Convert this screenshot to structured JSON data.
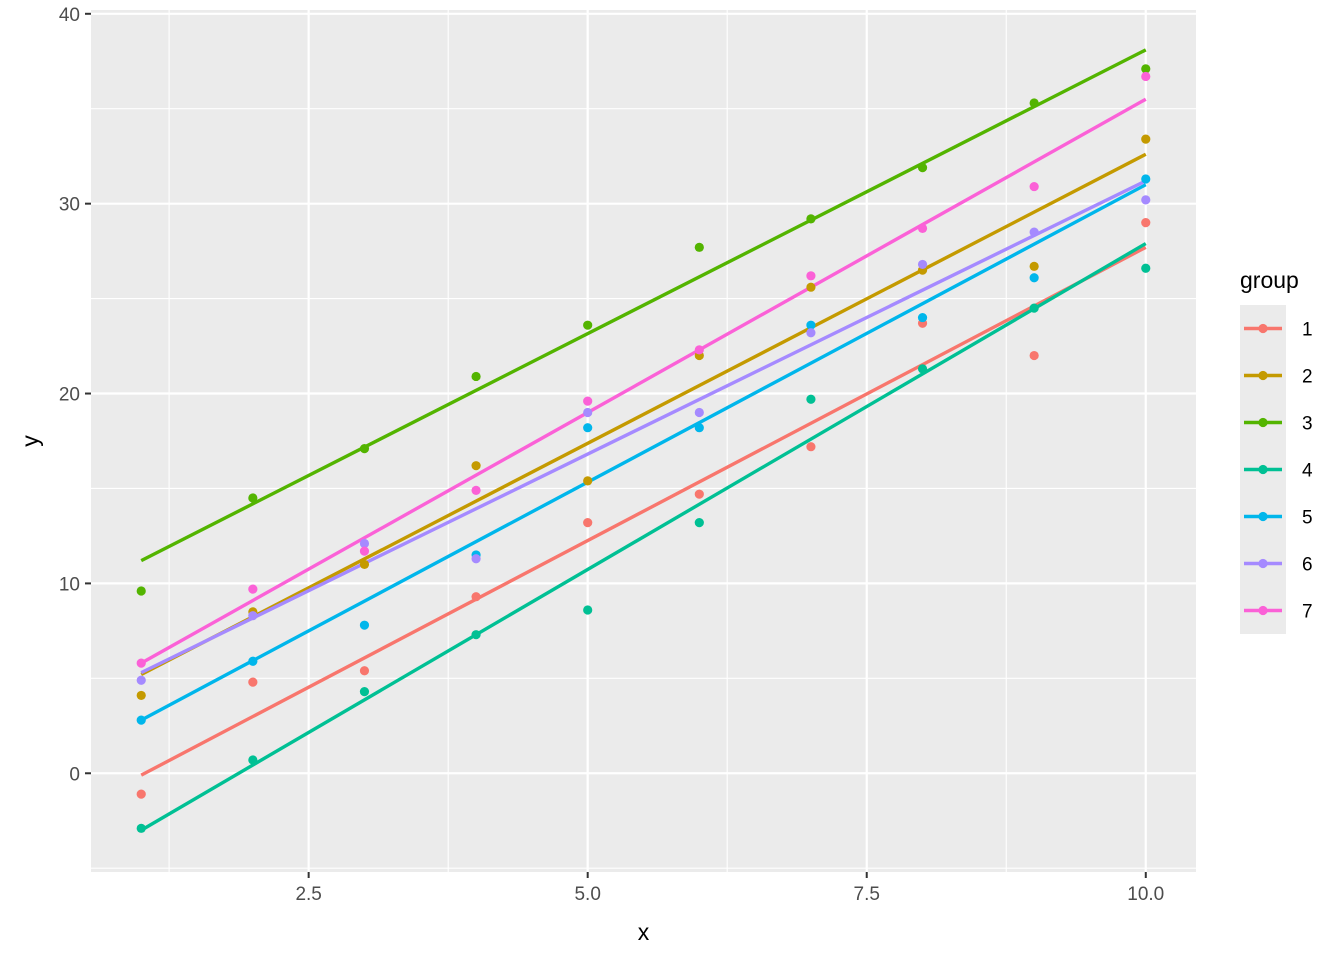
{
  "chart_data": {
    "type": "scatter",
    "title": "",
    "xlabel": "x",
    "ylabel": "y",
    "xlim": [
      0.55,
      10.45
    ],
    "ylim": [
      -5.2,
      40.2
    ],
    "x_ticks": [
      2.5,
      5.0,
      7.5,
      10.0
    ],
    "x_tick_labels": [
      "2.5",
      "5.0",
      "7.5",
      "10.0"
    ],
    "y_ticks": [
      0,
      10,
      20,
      30,
      40
    ],
    "y_tick_labels": [
      "0",
      "10",
      "20",
      "30",
      "40"
    ],
    "grid": true,
    "background": "#ebebeb",
    "legend": {
      "title": "group",
      "position": "right"
    },
    "x": [
      1,
      2,
      3,
      4,
      5,
      6,
      7,
      8,
      9,
      10
    ],
    "series": [
      {
        "name": "1",
        "color": "#F8766D",
        "values": [
          -1.1,
          4.8,
          5.4,
          9.3,
          13.2,
          14.7,
          17.2,
          23.7,
          22.0,
          29.0
        ],
        "fit": [
          -0.1,
          27.7
        ]
      },
      {
        "name": "2",
        "color": "#C49A00",
        "values": [
          4.1,
          8.5,
          11.0,
          16.2,
          15.4,
          22.0,
          25.6,
          26.5,
          26.7,
          33.4
        ],
        "fit": [
          5.2,
          32.6
        ]
      },
      {
        "name": "3",
        "color": "#53B400",
        "values": [
          9.6,
          14.5,
          17.1,
          20.9,
          23.6,
          27.7,
          29.2,
          31.9,
          35.3,
          37.1
        ],
        "fit": [
          11.2,
          38.1
        ]
      },
      {
        "name": "4",
        "color": "#00C094",
        "values": [
          -2.9,
          0.7,
          4.3,
          7.3,
          8.6,
          13.2,
          19.7,
          21.3,
          24.5,
          26.6
        ],
        "fit": [
          -3.0,
          27.9
        ]
      },
      {
        "name": "5",
        "color": "#00B6EB",
        "values": [
          2.8,
          5.9,
          7.8,
          11.5,
          18.2,
          18.2,
          23.6,
          24.0,
          26.1,
          31.3
        ],
        "fit": [
          2.8,
          31.0
        ]
      },
      {
        "name": "6",
        "color": "#A58AFF",
        "values": [
          4.9,
          8.3,
          12.1,
          11.3,
          19.0,
          19.0,
          23.2,
          26.8,
          28.5,
          30.2
        ],
        "fit": [
          5.3,
          31.2
        ]
      },
      {
        "name": "7",
        "color": "#FB61D7",
        "values": [
          5.8,
          9.7,
          11.7,
          14.9,
          19.6,
          22.3,
          26.2,
          28.7,
          30.9,
          36.7
        ],
        "fit": [
          5.8,
          35.5
        ]
      }
    ]
  }
}
